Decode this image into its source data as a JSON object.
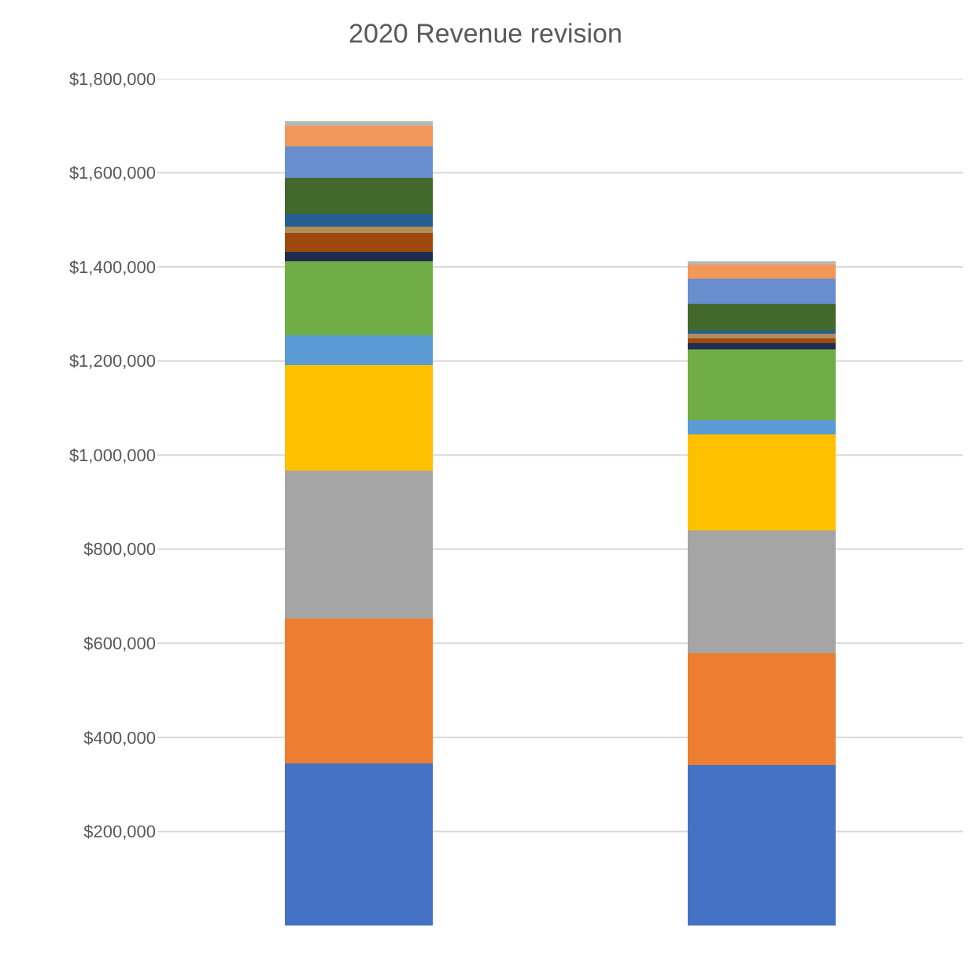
{
  "chart_data": {
    "type": "bar",
    "title": "2020 Revenue revision",
    "stacked": true,
    "categories": [
      null,
      null
    ],
    "series": [
      {
        "color": "#4472c4",
        "values": [
          346000,
          341000
        ]
      },
      {
        "color": "#ed7d31",
        "values": [
          305000,
          237000
        ]
      },
      {
        "color": "#a5a5a5",
        "values": [
          315000,
          263000
        ]
      },
      {
        "color": "#ffc000",
        "values": [
          226000,
          204000
        ]
      },
      {
        "color": "#5b9bd5",
        "values": [
          61000,
          30000
        ]
      },
      {
        "color": "#70ad47",
        "values": [
          158000,
          150000
        ]
      },
      {
        "color": "#1f2d50",
        "values": [
          20000,
          14000
        ]
      },
      {
        "color": "#9e480e",
        "values": [
          42000,
          9000
        ]
      },
      {
        "color": "#b08d57",
        "values": [
          14000,
          10000
        ]
      },
      {
        "color": "#255e91",
        "values": [
          26000,
          7000
        ]
      },
      {
        "color": "#43682b",
        "values": [
          77000,
          57000
        ]
      },
      {
        "color": "#698ed0",
        "values": [
          65000,
          53000
        ]
      },
      {
        "color": "#f1975a",
        "values": [
          43000,
          29000
        ]
      },
      {
        "color": "#b7b7b7",
        "values": [
          11000,
          9000
        ]
      }
    ],
    "ylim": [
      0,
      1800000
    ],
    "yticks": [
      {
        "value": 200000,
        "label": "$200,000"
      },
      {
        "value": 400000,
        "label": "$400,000"
      },
      {
        "value": 600000,
        "label": "$600,000"
      },
      {
        "value": 800000,
        "label": "$800,000"
      },
      {
        "value": 1000000,
        "label": "$1,000,000"
      },
      {
        "value": 1200000,
        "label": "$1,200,000"
      },
      {
        "value": 1400000,
        "label": "$1,400,000"
      },
      {
        "value": 1600000,
        "label": "$1,600,000"
      },
      {
        "value": 1800000,
        "label": "$1,800,000"
      }
    ],
    "grid": "y",
    "tick_labels": "y"
  }
}
